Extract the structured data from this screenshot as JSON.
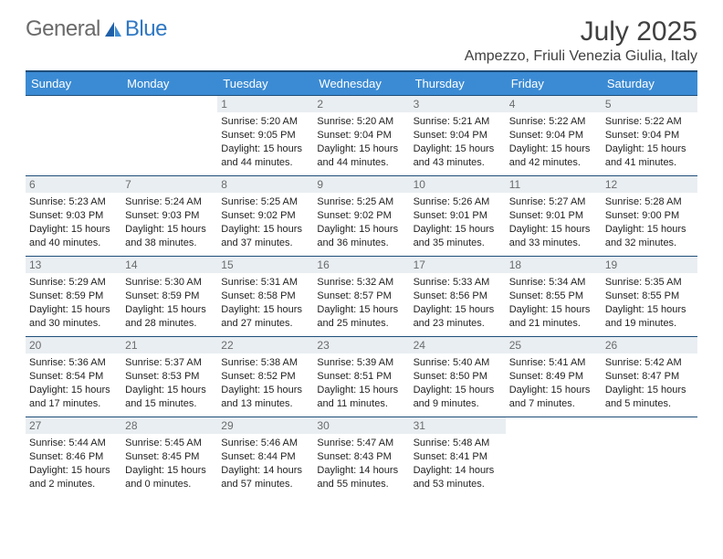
{
  "brand": {
    "word1": "General",
    "word2": "Blue"
  },
  "title": "July 2025",
  "location": "Ampezzo, Friuli Venezia Giulia, Italy",
  "colors": {
    "header_bg": "#3b8bd4",
    "header_border": "#1f4e79",
    "daynum_bg": "#e9eef2",
    "daynum_text": "#6b6b6b",
    "logo_gray": "#6a6a6a",
    "logo_blue": "#2f78c3"
  },
  "day_headers": [
    "Sunday",
    "Monday",
    "Tuesday",
    "Wednesday",
    "Thursday",
    "Friday",
    "Saturday"
  ],
  "weeks": [
    [
      {
        "empty": true
      },
      {
        "empty": true
      },
      {
        "num": "1",
        "sunrise": "Sunrise: 5:20 AM",
        "sunset": "Sunset: 9:05 PM",
        "daylight": "Daylight: 15 hours and 44 minutes."
      },
      {
        "num": "2",
        "sunrise": "Sunrise: 5:20 AM",
        "sunset": "Sunset: 9:04 PM",
        "daylight": "Daylight: 15 hours and 44 minutes."
      },
      {
        "num": "3",
        "sunrise": "Sunrise: 5:21 AM",
        "sunset": "Sunset: 9:04 PM",
        "daylight": "Daylight: 15 hours and 43 minutes."
      },
      {
        "num": "4",
        "sunrise": "Sunrise: 5:22 AM",
        "sunset": "Sunset: 9:04 PM",
        "daylight": "Daylight: 15 hours and 42 minutes."
      },
      {
        "num": "5",
        "sunrise": "Sunrise: 5:22 AM",
        "sunset": "Sunset: 9:04 PM",
        "daylight": "Daylight: 15 hours and 41 minutes."
      }
    ],
    [
      {
        "num": "6",
        "sunrise": "Sunrise: 5:23 AM",
        "sunset": "Sunset: 9:03 PM",
        "daylight": "Daylight: 15 hours and 40 minutes."
      },
      {
        "num": "7",
        "sunrise": "Sunrise: 5:24 AM",
        "sunset": "Sunset: 9:03 PM",
        "daylight": "Daylight: 15 hours and 38 minutes."
      },
      {
        "num": "8",
        "sunrise": "Sunrise: 5:25 AM",
        "sunset": "Sunset: 9:02 PM",
        "daylight": "Daylight: 15 hours and 37 minutes."
      },
      {
        "num": "9",
        "sunrise": "Sunrise: 5:25 AM",
        "sunset": "Sunset: 9:02 PM",
        "daylight": "Daylight: 15 hours and 36 minutes."
      },
      {
        "num": "10",
        "sunrise": "Sunrise: 5:26 AM",
        "sunset": "Sunset: 9:01 PM",
        "daylight": "Daylight: 15 hours and 35 minutes."
      },
      {
        "num": "11",
        "sunrise": "Sunrise: 5:27 AM",
        "sunset": "Sunset: 9:01 PM",
        "daylight": "Daylight: 15 hours and 33 minutes."
      },
      {
        "num": "12",
        "sunrise": "Sunrise: 5:28 AM",
        "sunset": "Sunset: 9:00 PM",
        "daylight": "Daylight: 15 hours and 32 minutes."
      }
    ],
    [
      {
        "num": "13",
        "sunrise": "Sunrise: 5:29 AM",
        "sunset": "Sunset: 8:59 PM",
        "daylight": "Daylight: 15 hours and 30 minutes."
      },
      {
        "num": "14",
        "sunrise": "Sunrise: 5:30 AM",
        "sunset": "Sunset: 8:59 PM",
        "daylight": "Daylight: 15 hours and 28 minutes."
      },
      {
        "num": "15",
        "sunrise": "Sunrise: 5:31 AM",
        "sunset": "Sunset: 8:58 PM",
        "daylight": "Daylight: 15 hours and 27 minutes."
      },
      {
        "num": "16",
        "sunrise": "Sunrise: 5:32 AM",
        "sunset": "Sunset: 8:57 PM",
        "daylight": "Daylight: 15 hours and 25 minutes."
      },
      {
        "num": "17",
        "sunrise": "Sunrise: 5:33 AM",
        "sunset": "Sunset: 8:56 PM",
        "daylight": "Daylight: 15 hours and 23 minutes."
      },
      {
        "num": "18",
        "sunrise": "Sunrise: 5:34 AM",
        "sunset": "Sunset: 8:55 PM",
        "daylight": "Daylight: 15 hours and 21 minutes."
      },
      {
        "num": "19",
        "sunrise": "Sunrise: 5:35 AM",
        "sunset": "Sunset: 8:55 PM",
        "daylight": "Daylight: 15 hours and 19 minutes."
      }
    ],
    [
      {
        "num": "20",
        "sunrise": "Sunrise: 5:36 AM",
        "sunset": "Sunset: 8:54 PM",
        "daylight": "Daylight: 15 hours and 17 minutes."
      },
      {
        "num": "21",
        "sunrise": "Sunrise: 5:37 AM",
        "sunset": "Sunset: 8:53 PM",
        "daylight": "Daylight: 15 hours and 15 minutes."
      },
      {
        "num": "22",
        "sunrise": "Sunrise: 5:38 AM",
        "sunset": "Sunset: 8:52 PM",
        "daylight": "Daylight: 15 hours and 13 minutes."
      },
      {
        "num": "23",
        "sunrise": "Sunrise: 5:39 AM",
        "sunset": "Sunset: 8:51 PM",
        "daylight": "Daylight: 15 hours and 11 minutes."
      },
      {
        "num": "24",
        "sunrise": "Sunrise: 5:40 AM",
        "sunset": "Sunset: 8:50 PM",
        "daylight": "Daylight: 15 hours and 9 minutes."
      },
      {
        "num": "25",
        "sunrise": "Sunrise: 5:41 AM",
        "sunset": "Sunset: 8:49 PM",
        "daylight": "Daylight: 15 hours and 7 minutes."
      },
      {
        "num": "26",
        "sunrise": "Sunrise: 5:42 AM",
        "sunset": "Sunset: 8:47 PM",
        "daylight": "Daylight: 15 hours and 5 minutes."
      }
    ],
    [
      {
        "num": "27",
        "sunrise": "Sunrise: 5:44 AM",
        "sunset": "Sunset: 8:46 PM",
        "daylight": "Daylight: 15 hours and 2 minutes."
      },
      {
        "num": "28",
        "sunrise": "Sunrise: 5:45 AM",
        "sunset": "Sunset: 8:45 PM",
        "daylight": "Daylight: 15 hours and 0 minutes."
      },
      {
        "num": "29",
        "sunrise": "Sunrise: 5:46 AM",
        "sunset": "Sunset: 8:44 PM",
        "daylight": "Daylight: 14 hours and 57 minutes."
      },
      {
        "num": "30",
        "sunrise": "Sunrise: 5:47 AM",
        "sunset": "Sunset: 8:43 PM",
        "daylight": "Daylight: 14 hours and 55 minutes."
      },
      {
        "num": "31",
        "sunrise": "Sunrise: 5:48 AM",
        "sunset": "Sunset: 8:41 PM",
        "daylight": "Daylight: 14 hours and 53 minutes."
      },
      {
        "empty": true
      },
      {
        "empty": true
      }
    ]
  ]
}
